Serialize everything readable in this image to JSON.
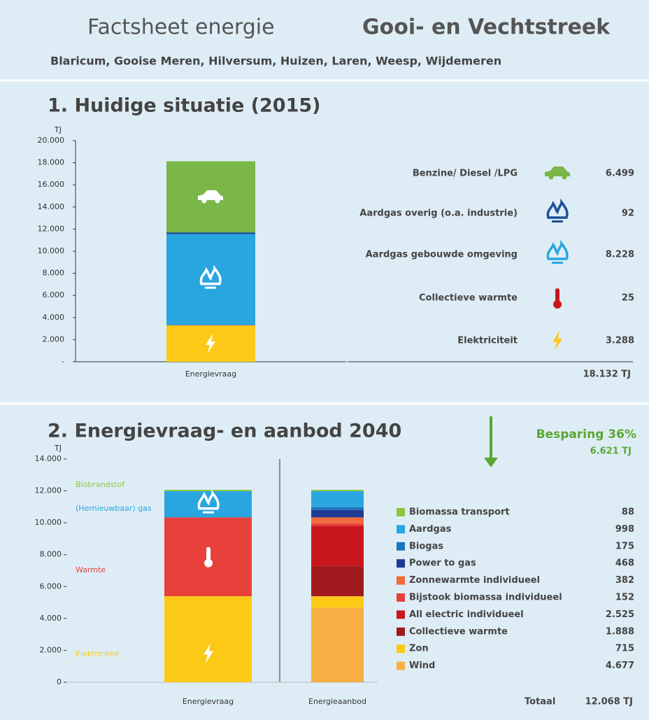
{
  "header": {
    "title": "Factsheet energie",
    "region": "Gooi- en Vechtstreek",
    "subtitle": "Blaricum, Gooise Meren, Hilversum, Huizen, Laren, Weesp, Wijdemeren"
  },
  "chart_data": [
    {
      "type": "stacked-bar",
      "title": "1. Huidige situatie (2015)",
      "y_label": "TJ",
      "categories": [
        "Energievraag"
      ],
      "ylim": [
        0,
        20000
      ],
      "yticks": [
        {
          "value": 0,
          "label": "-"
        },
        {
          "value": 2000,
          "label": "2.000"
        },
        {
          "value": 4000,
          "label": "4.000"
        },
        {
          "value": 6000,
          "label": "6.000"
        },
        {
          "value": 8000,
          "label": "8.000"
        },
        {
          "value": 10000,
          "label": "10.000"
        },
        {
          "value": 12000,
          "label": "12.000"
        },
        {
          "value": 14000,
          "label": "14.000"
        },
        {
          "value": 16000,
          "label": "16.000"
        },
        {
          "value": 18000,
          "label": "18.000"
        },
        {
          "value": 20000,
          "label": "20.000"
        }
      ],
      "series": [
        {
          "name": "Elektriciteit",
          "color": "#fcc917",
          "values": [
            3288
          ],
          "value_labels": [
            "3.288"
          ]
        },
        {
          "name": "Collectieve warmte",
          "color": "#c8161d",
          "values": [
            25
          ],
          "value_labels": [
            "25"
          ]
        },
        {
          "name": "Aardgas gebouwde omgeving",
          "color": "#29a6e0",
          "values": [
            8228
          ],
          "value_labels": [
            "8.228"
          ]
        },
        {
          "name": "Aardgas overig (o.a. industrie)",
          "color": "#1b4f9c",
          "values": [
            92
          ],
          "value_labels": [
            "92"
          ]
        },
        {
          "name": "Benzine/ Diesel /LPG",
          "color": "#7ab648",
          "values": [
            6499
          ],
          "value_labels": [
            "6.499"
          ]
        }
      ],
      "total": {
        "value": 18132,
        "label": "18.132 TJ"
      }
    },
    {
      "type": "stacked-bar",
      "title": "2. Energievraag- en aanbod 2040",
      "y_label": "TJ",
      "categories": [
        "Energievraag"
      ],
      "ylim": [
        0,
        14000
      ],
      "yticks": [
        0,
        {
          "value": 2000,
          "label": "2.000"
        },
        {
          "value": 4000,
          "label": "4.000"
        },
        {
          "value": 6000,
          "label": "6.000"
        },
        {
          "value": 8000,
          "label": "8.000"
        },
        {
          "value": 10000,
          "label": "10.000"
        },
        {
          "value": 12000,
          "label": "12.000"
        },
        {
          "value": 14000,
          "label": "14.000"
        }
      ],
      "series": [
        {
          "name": "Elektriciteit",
          "color": "#fcc917",
          "values": [
            5392
          ]
        },
        {
          "name": "Warmte",
          "color": "#e8413c",
          "values": [
            4947
          ]
        },
        {
          "name": "(Hernieuwbaar) gas",
          "color": "#29a6e0",
          "values": [
            1641
          ]
        },
        {
          "name": "Biobrandstof",
          "color": "#8cc63f",
          "values": [
            88
          ]
        }
      ]
    },
    {
      "type": "stacked-bar",
      "categories": [
        "Energieaanbod"
      ],
      "ylim": [
        0,
        14000
      ],
      "series": [
        {
          "name": "Wind",
          "color": "#f7ae42",
          "values": [
            4677
          ],
          "value_labels": [
            "4.677"
          ]
        },
        {
          "name": "Zon",
          "color": "#fcc917",
          "values": [
            715
          ],
          "value_labels": [
            "715"
          ]
        },
        {
          "name": "Collectieve warmte",
          "color": "#a01a1d",
          "values": [
            1888
          ],
          "value_labels": [
            "1.888"
          ]
        },
        {
          "name": "All electric individueel",
          "color": "#c8161d",
          "values": [
            2525
          ],
          "value_labels": [
            "2.525"
          ]
        },
        {
          "name": "Bijstook biomassa individueel",
          "color": "#e8413c",
          "values": [
            152
          ],
          "value_labels": [
            "152"
          ]
        },
        {
          "name": "Zonnewarmte individueel",
          "color": "#f26b3a",
          "values": [
            382
          ],
          "value_labels": [
            "382"
          ]
        },
        {
          "name": "Power to gas",
          "color": "#1f3a93",
          "values": [
            468
          ],
          "value_labels": [
            "468"
          ]
        },
        {
          "name": "Biogas",
          "color": "#1b75bc",
          "values": [
            175
          ],
          "value_labels": [
            "175"
          ]
        },
        {
          "name": "Aardgas",
          "color": "#29a6e0",
          "values": [
            998
          ],
          "value_labels": [
            "998"
          ]
        },
        {
          "name": "Biomassa transport",
          "color": "#8cc63f",
          "values": [
            88
          ],
          "value_labels": [
            "88"
          ]
        }
      ],
      "annotations": [
        "Besparing 36%",
        "6.621 TJ"
      ],
      "total_label": "Totaal",
      "total": {
        "value": 12068,
        "label": "12.068 TJ"
      }
    }
  ]
}
